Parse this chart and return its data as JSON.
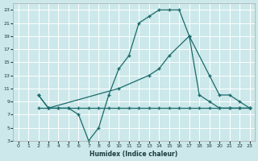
{
  "xlabel": "Humidex (Indice chaleur)",
  "bg_color": "#cce8ea",
  "grid_color": "#ffffff",
  "line_color": "#1a6b6b",
  "xlim": [
    -0.5,
    23.5
  ],
  "ylim": [
    3,
    24
  ],
  "xticks": [
    0,
    1,
    2,
    3,
    4,
    5,
    6,
    7,
    8,
    9,
    10,
    11,
    12,
    13,
    14,
    15,
    16,
    17,
    18,
    19,
    20,
    21,
    22,
    23
  ],
  "yticks": [
    3,
    5,
    7,
    9,
    11,
    13,
    15,
    17,
    19,
    21,
    23
  ],
  "line1_x": [
    2,
    3,
    4,
    5,
    6,
    7,
    8,
    9,
    10,
    11,
    12,
    13,
    14,
    15,
    16,
    17,
    18,
    19,
    20,
    21,
    22,
    23
  ],
  "line1_y": [
    10,
    8,
    8,
    8,
    7,
    3,
    5,
    10,
    14,
    16,
    21,
    22,
    23,
    23,
    23,
    19,
    10,
    9,
    8,
    8,
    8,
    8
  ],
  "line2_x": [
    2,
    3,
    4,
    5,
    6,
    7,
    8,
    9,
    10,
    11,
    12,
    13,
    14,
    15,
    16,
    17,
    18,
    19,
    20,
    21,
    22,
    23
  ],
  "line2_y": [
    8,
    8,
    8,
    8,
    8,
    8,
    8,
    8,
    8,
    8,
    8,
    8,
    8,
    8,
    8,
    8,
    8,
    8,
    8,
    8,
    8,
    8
  ],
  "line3_x": [
    2,
    3,
    10,
    13,
    14,
    15,
    17,
    19,
    20,
    21,
    22,
    23
  ],
  "line3_y": [
    10,
    8,
    11,
    13,
    14,
    16,
    19,
    13,
    10,
    10,
    9,
    8
  ]
}
